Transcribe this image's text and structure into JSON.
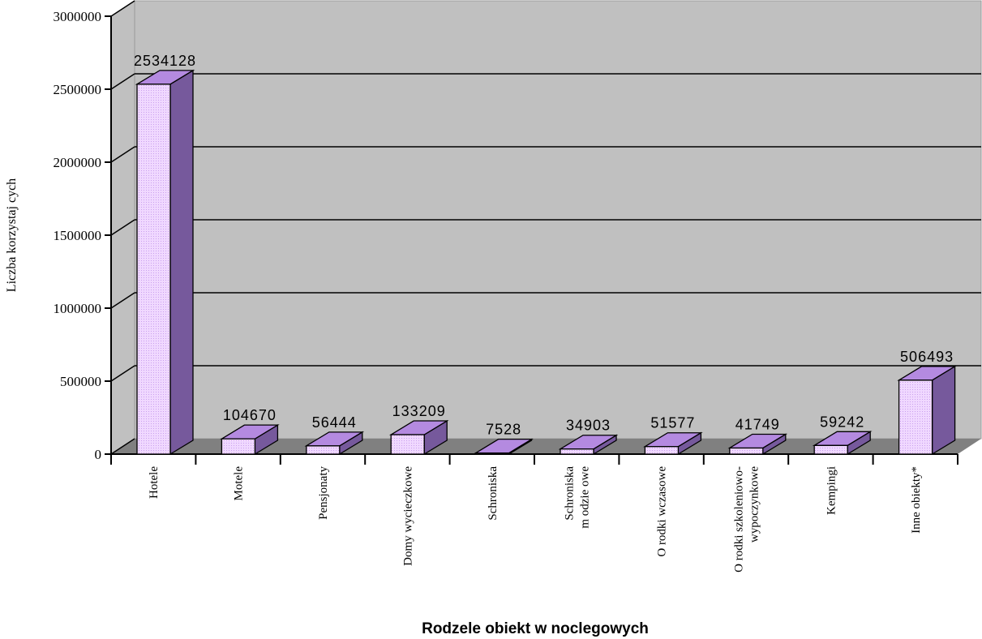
{
  "chart_data": {
    "type": "bar",
    "style": "3d-column",
    "title": "",
    "xlabel": "Rodzele obiekt  w  noclegowych",
    "ylabel": "Liczba korzystaj  cych",
    "ylim": [
      0,
      3000000
    ],
    "yticks": [
      "0",
      "500000",
      "1000000",
      "1500000",
      "2000000",
      "2500000",
      "3000000"
    ],
    "grid": true,
    "legend": "none",
    "categories": [
      [
        "Hotele"
      ],
      [
        "Motele"
      ],
      [
        "Pensjonaty"
      ],
      [
        "Domy wycieczkowe"
      ],
      [
        "Schroniska"
      ],
      [
        "Schroniska",
        "m odzie  owe"
      ],
      [
        "O rodki wczasowe"
      ],
      [
        "O rodki szkoleniowo-",
        "wypoczynkowe"
      ],
      [
        "Kempingi"
      ],
      [
        "Inne obiekty*"
      ]
    ],
    "values": [
      2534128,
      104670,
      56444,
      133209,
      7528,
      34903,
      51577,
      41749,
      59242,
      506493
    ],
    "data_labels": [
      "2534128",
      "104670",
      "56444",
      "133209",
      "7528",
      "34903",
      "51577",
      "41749",
      "59242",
      "506493"
    ],
    "colors": {
      "bar_front": "#e8c4ff",
      "bar_side": "#76599c",
      "bar_top": "#b48ae0",
      "wall": "#c0c0c0",
      "floor": "#808080"
    }
  }
}
